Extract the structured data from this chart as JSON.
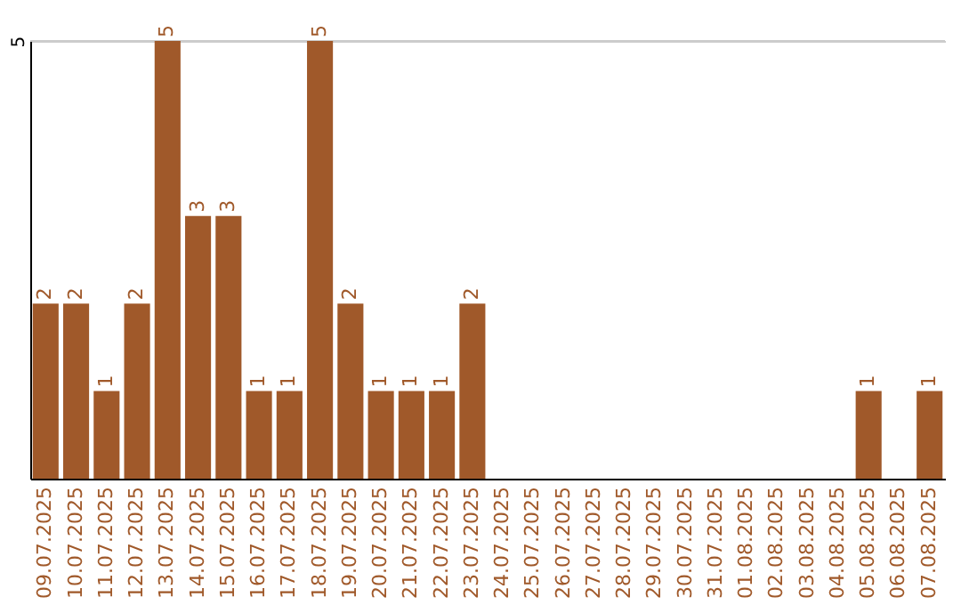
{
  "chart_data": {
    "type": "bar",
    "categories": [
      "09.07.2025",
      "10.07.2025",
      "11.07.2025",
      "12.07.2025",
      "13.07.2025",
      "14.07.2025",
      "15.07.2025",
      "16.07.2025",
      "17.07.2025",
      "18.07.2025",
      "19.07.2025",
      "20.07.2025",
      "21.07.2025",
      "22.07.2025",
      "23.07.2025",
      "24.07.2025",
      "25.07.2025",
      "26.07.2025",
      "27.07.2025",
      "28.07.2025",
      "29.07.2025",
      "30.07.2025",
      "31.07.2025",
      "01.08.2025",
      "02.08.2025",
      "03.08.2025",
      "04.08.2025",
      "05.08.2025",
      "06.08.2025",
      "07.08.2025"
    ],
    "values": [
      2,
      2,
      1,
      2,
      5,
      3,
      3,
      1,
      1,
      5,
      2,
      1,
      1,
      1,
      2,
      0,
      0,
      0,
      0,
      0,
      0,
      0,
      0,
      0,
      0,
      0,
      0,
      1,
      0,
      1
    ],
    "value_labels": [
      "2",
      "2",
      "1",
      "2",
      "5",
      "3",
      "3",
      "1",
      "1",
      "5",
      "2",
      "1",
      "1",
      "1",
      "2",
      null,
      null,
      null,
      null,
      null,
      null,
      null,
      null,
      null,
      null,
      null,
      null,
      "1",
      null,
      "1"
    ],
    "color": "#a0592a",
    "ylim": [
      0,
      5
    ],
    "yticks": [
      5
    ],
    "grid": "y"
  }
}
